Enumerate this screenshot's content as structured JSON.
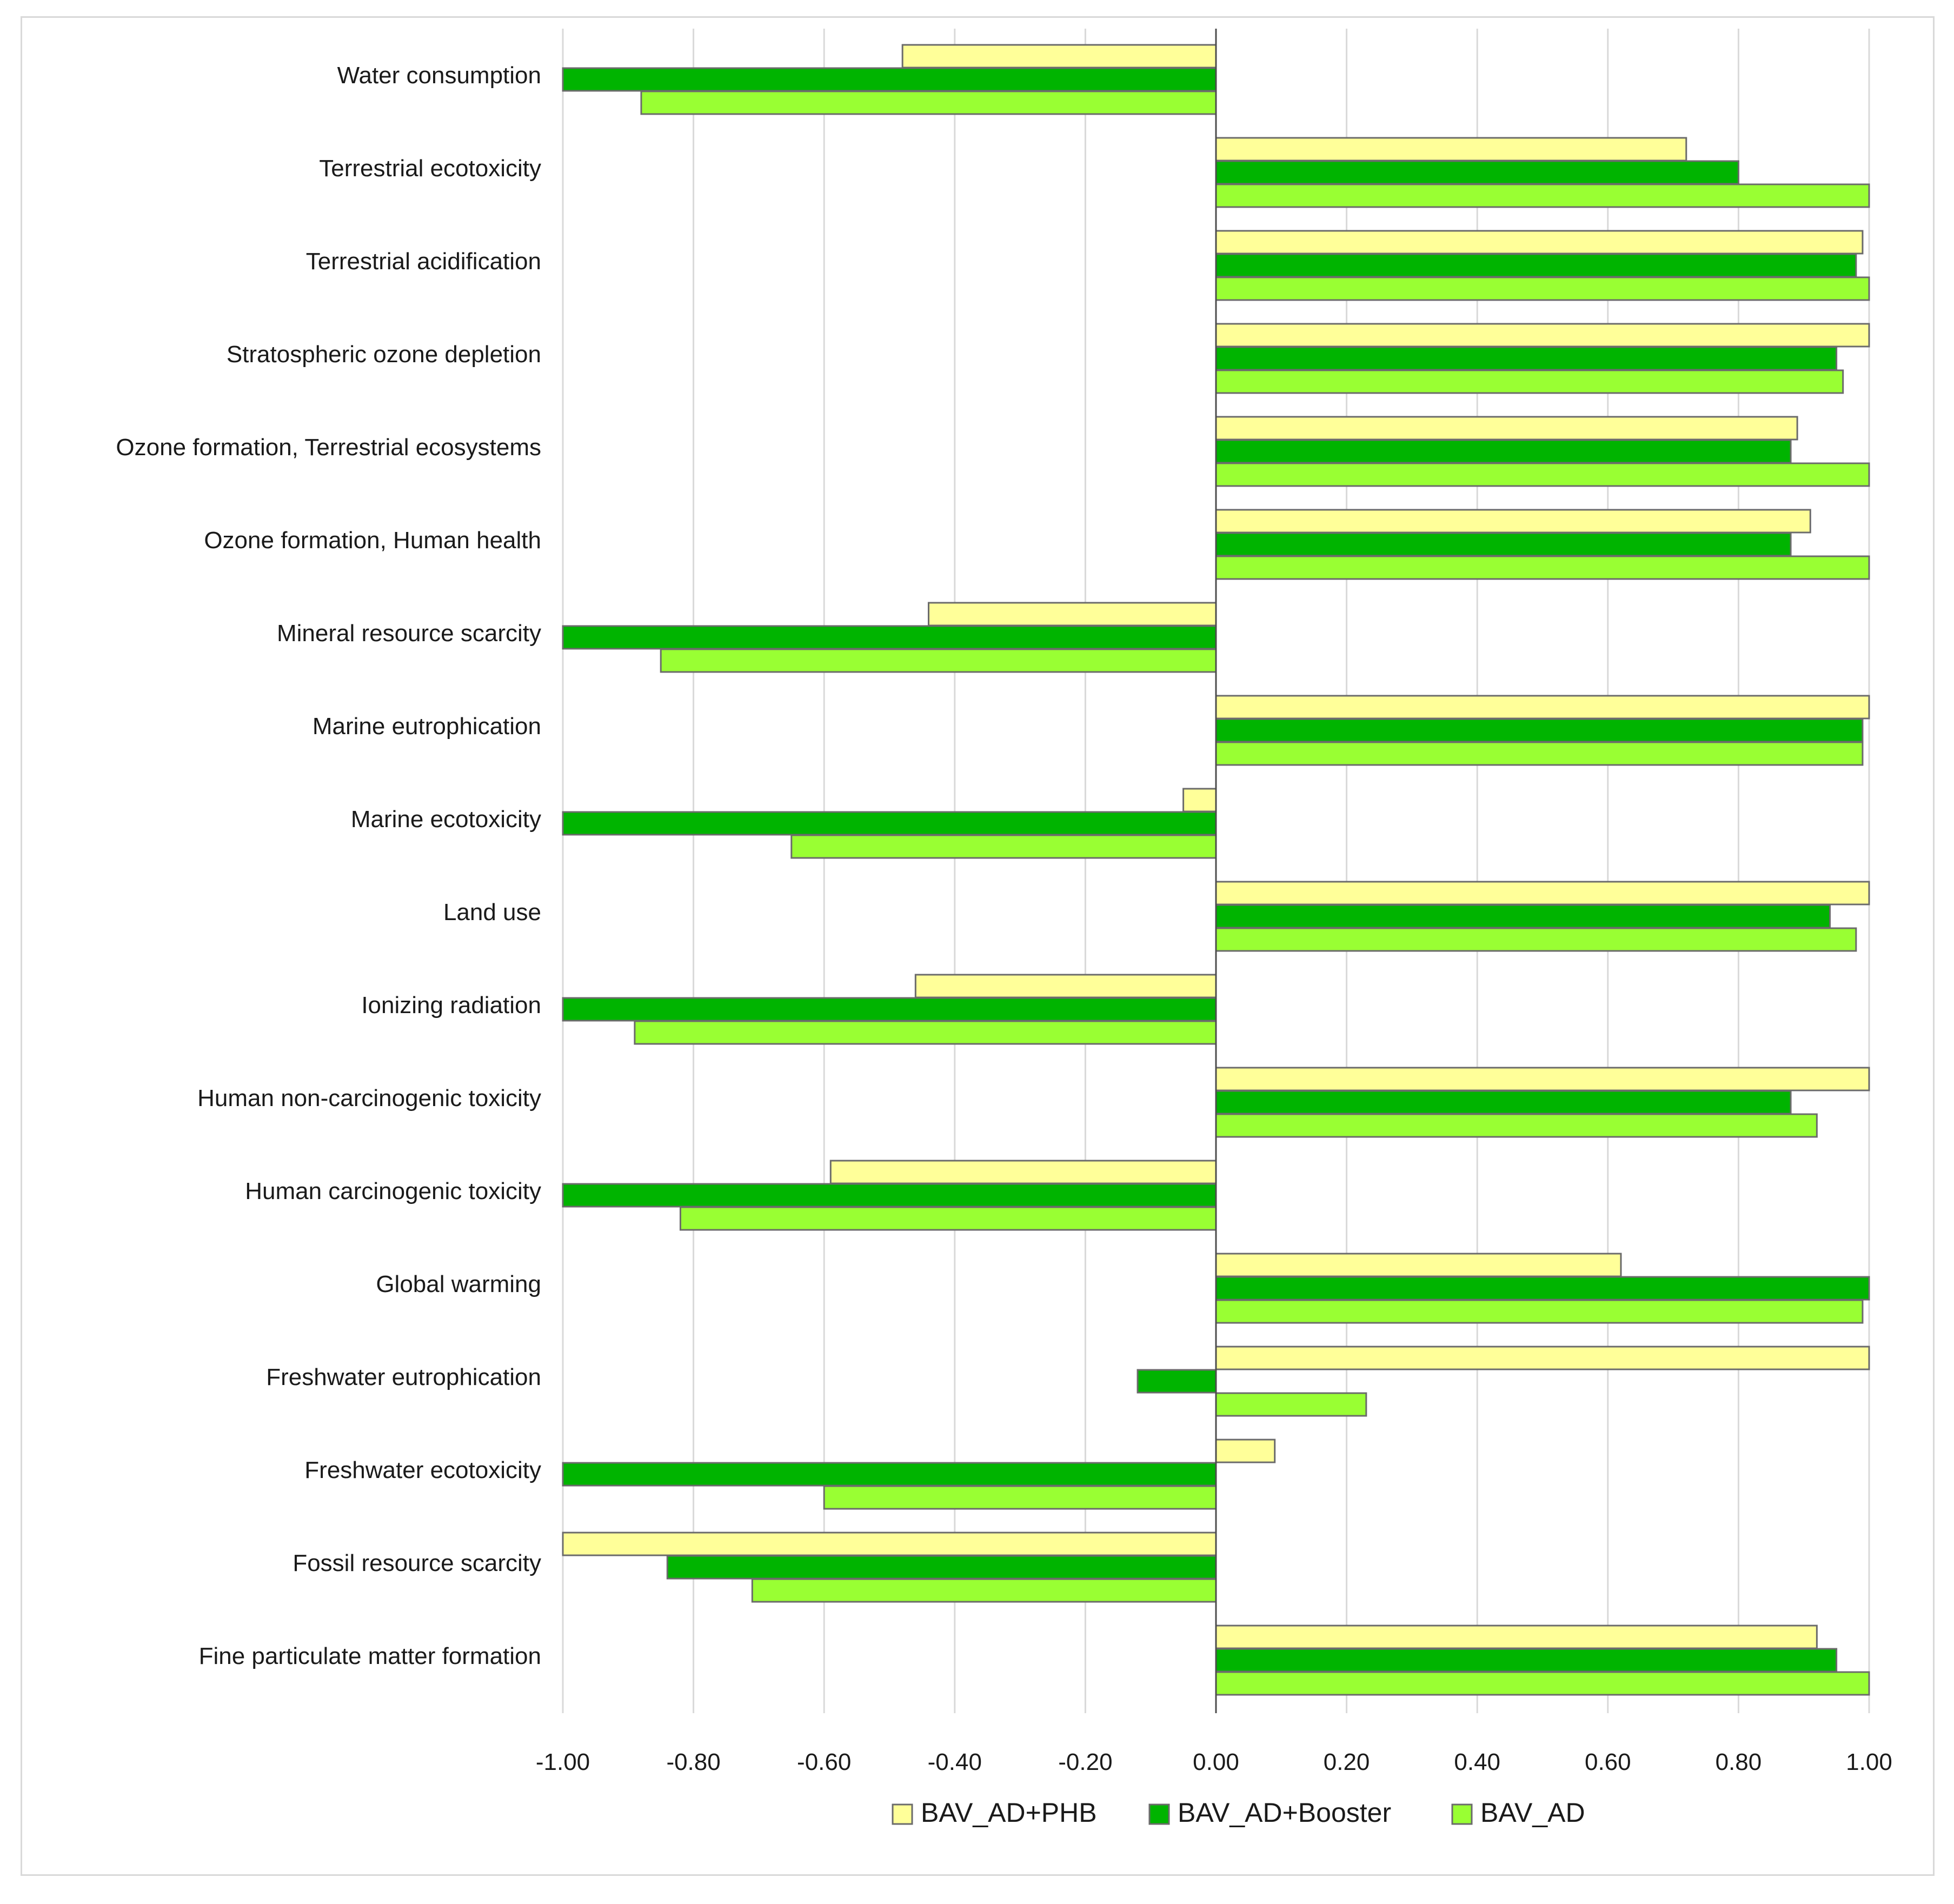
{
  "chart_data": {
    "type": "bar",
    "orientation": "horizontal",
    "title": "",
    "xlabel": "",
    "ylabel": "",
    "xlim": [
      -1.0,
      1.0
    ],
    "xticks": [
      "-1.00",
      "-0.80",
      "-0.60",
      "-0.40",
      "-0.20",
      "0.00",
      "0.20",
      "0.40",
      "0.60",
      "0.80",
      "1.00"
    ],
    "grid": true,
    "legend_position": "bottom",
    "categories": [
      "Water consumption",
      "Terrestrial ecotoxicity",
      "Terrestrial acidification",
      "Stratospheric ozone depletion",
      "Ozone formation, Terrestrial ecosystems",
      "Ozone formation, Human health",
      "Mineral resource scarcity",
      "Marine eutrophication",
      "Marine ecotoxicity",
      "Land use",
      "Ionizing radiation",
      "Human non-carcinogenic toxicity",
      "Human carcinogenic toxicity",
      "Global warming",
      "Freshwater eutrophication",
      "Freshwater ecotoxicity",
      "Fossil resource scarcity",
      "Fine particulate matter formation"
    ],
    "series": [
      {
        "name": "BAV_AD+PHB",
        "color": "#ffff99",
        "values": [
          -0.48,
          0.72,
          0.99,
          1.0,
          0.89,
          0.91,
          -0.44,
          1.0,
          -0.05,
          1.0,
          -0.46,
          1.0,
          -0.59,
          0.62,
          1.0,
          0.09,
          -1.0,
          0.92
        ]
      },
      {
        "name": "BAV_AD+Booster",
        "color": "#00b400",
        "values": [
          -1.0,
          0.8,
          0.98,
          0.95,
          0.88,
          0.88,
          -1.0,
          0.99,
          -1.0,
          0.94,
          -1.0,
          0.88,
          -1.0,
          1.0,
          -0.12,
          -1.0,
          -0.84,
          0.95
        ]
      },
      {
        "name": "BAV_AD",
        "color": "#99ff33",
        "values": [
          -0.88,
          1.0,
          1.0,
          0.96,
          1.0,
          1.0,
          -0.85,
          0.99,
          -0.65,
          0.98,
          -0.89,
          0.92,
          -0.82,
          0.99,
          0.23,
          -0.6,
          -0.71,
          1.0
        ]
      }
    ]
  }
}
